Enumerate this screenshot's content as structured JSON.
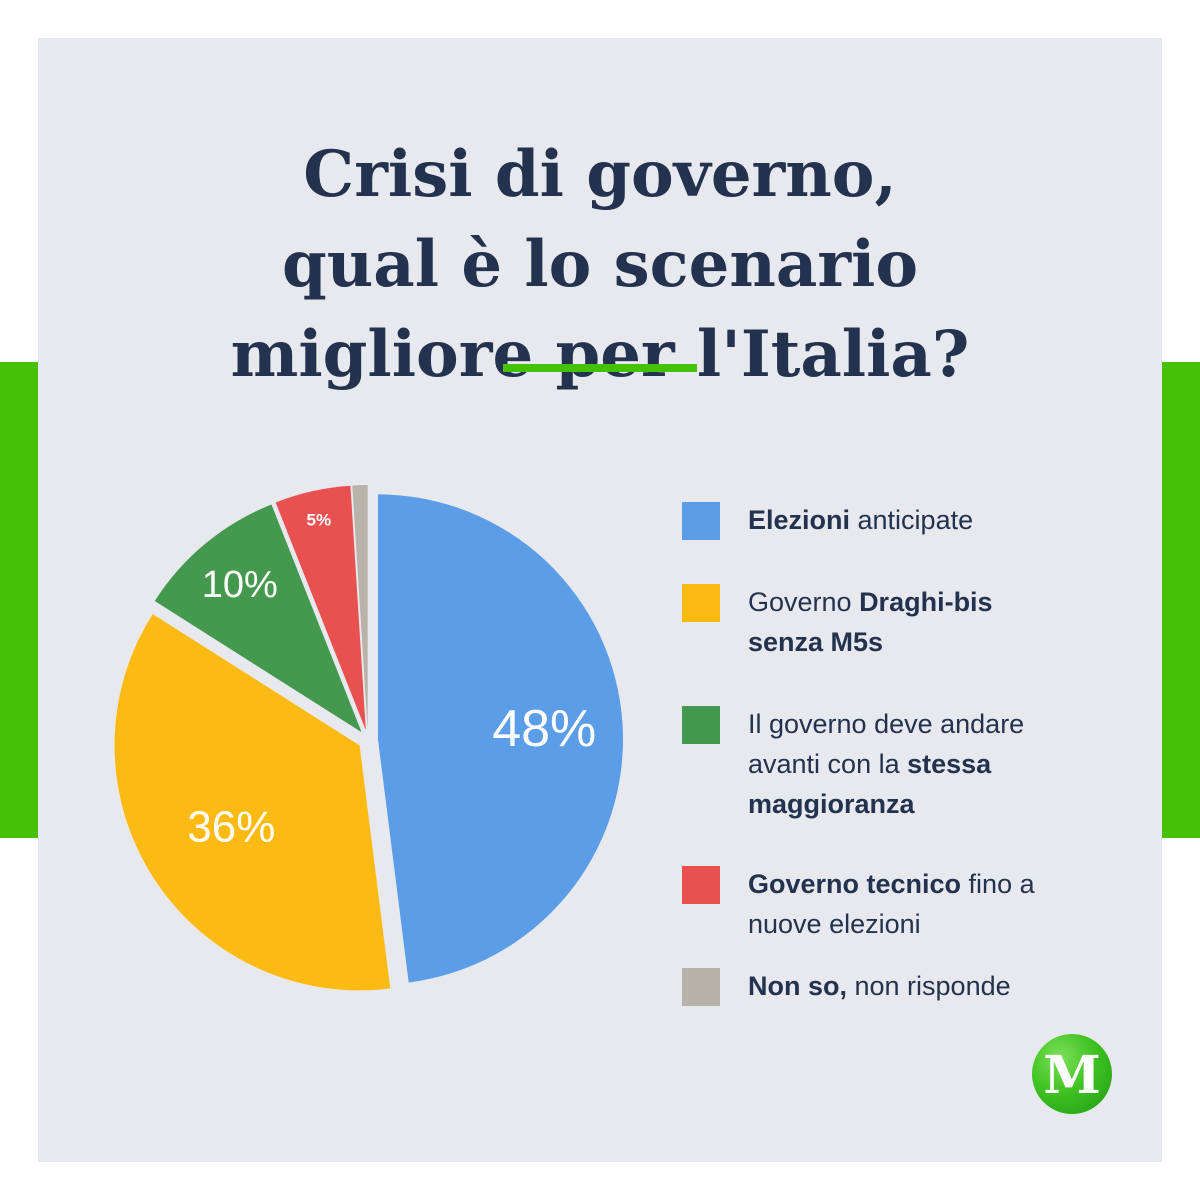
{
  "title": {
    "line1": "Crisi di governo,",
    "line2": "qual è lo scenario",
    "line3": "migliore per l'Italia?"
  },
  "colors": {
    "accent_green": "#46c10a",
    "background": "#e8e9ee",
    "text": "#23324e"
  },
  "chart_data": {
    "type": "pie",
    "slices": [
      {
        "value": 48,
        "label": "48%",
        "color": "#5b9de6"
      },
      {
        "value": 36,
        "label": "36%",
        "color": "#fdba12"
      },
      {
        "value": 10,
        "label": "10%",
        "color": "#45994f"
      },
      {
        "value": 5,
        "label": "5%",
        "color": "#e95151"
      },
      {
        "value": 1,
        "label": "",
        "color": "#b8b3a8"
      }
    ],
    "legend_placement": "right"
  },
  "legend": [
    {
      "bold": "Elezioni",
      "rest": " anticipate",
      "color": "#5b9de6"
    },
    {
      "plain": "Governo ",
      "bold": "Draghi-bis senza M5s",
      "color": "#fdba12"
    },
    {
      "plain": "Il governo deve andare avanti con la ",
      "bold": "stessa maggioranza",
      "color": "#45994f"
    },
    {
      "bold": "Governo tecnico",
      "rest": " fino a nuove elezioni",
      "color": "#e95151"
    },
    {
      "bold": "Non so,",
      "rest": " non risponde",
      "color": "#b8b3a8"
    }
  ],
  "logo": {
    "letter": "M",
    "icon": "m-logo-icon"
  }
}
